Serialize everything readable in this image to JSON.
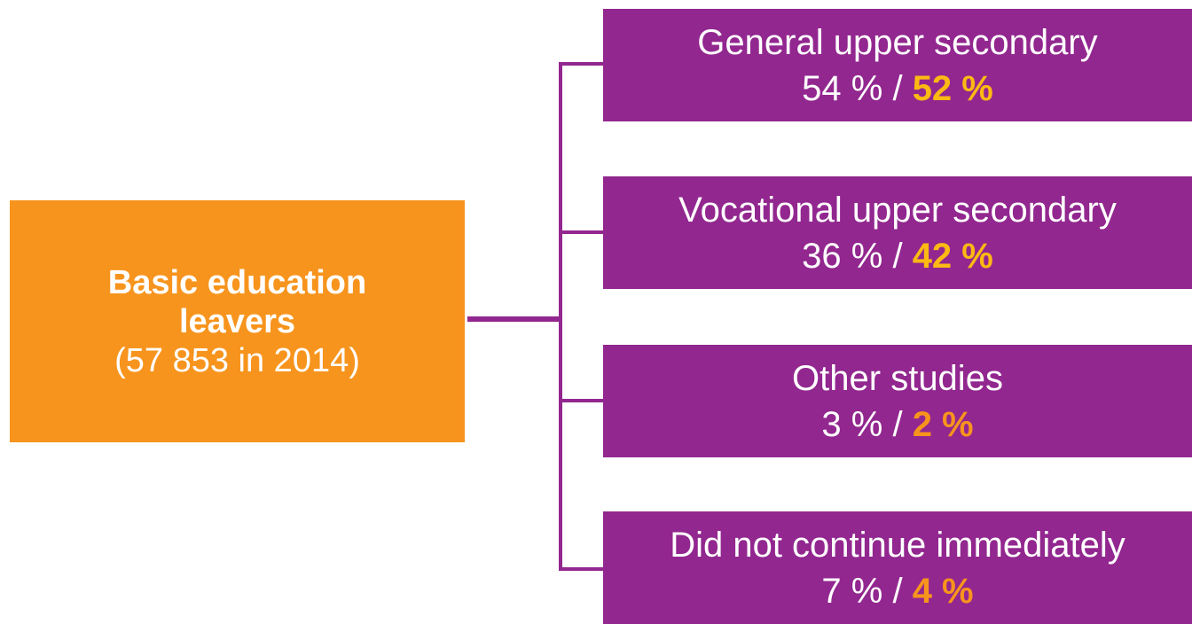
{
  "source": {
    "title": "Basic education leavers",
    "subtitle": "(57 853 in 2014)"
  },
  "separator": "/",
  "nodes": [
    {
      "label": "General upper secondary",
      "values": [
        "54 %",
        "52 %"
      ]
    },
    {
      "label": "Vocational upper secondary",
      "values": [
        "36 %",
        "42 %"
      ]
    },
    {
      "label": "Other studies",
      "values": [
        "3 %",
        "2 %"
      ]
    },
    {
      "label": "Did not continue immediately",
      "values": [
        "7 %",
        "4 %"
      ]
    }
  ]
}
